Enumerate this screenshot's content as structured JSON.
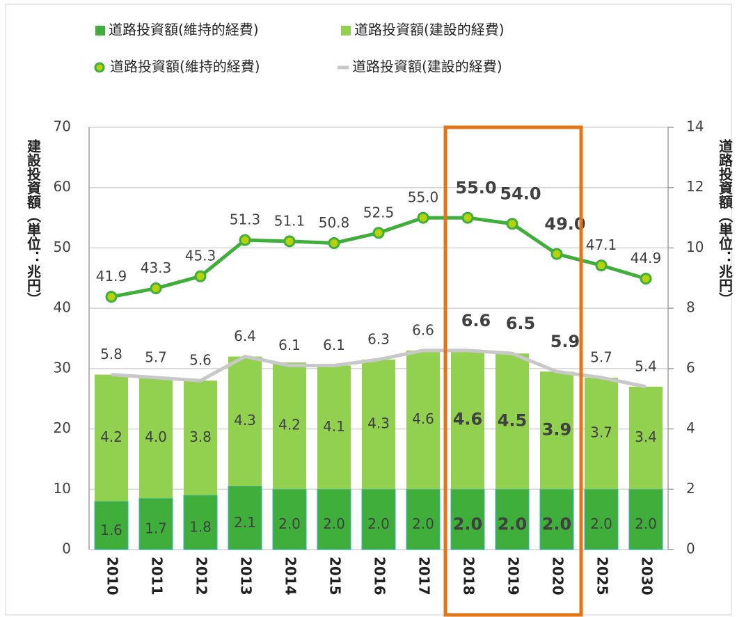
{
  "chart_data": {
    "type": "combo",
    "categories": [
      "2010",
      "2011",
      "2012",
      "2013",
      "2014",
      "2015",
      "2016",
      "2017",
      "2018",
      "2019",
      "2020",
      "2025",
      "2030"
    ],
    "ylabel": "建設投資額（単位：兆円）",
    "y2label": "道路投資額（単位：兆円）",
    "ylim": [
      0,
      70
    ],
    "yticks": [
      0,
      10,
      20,
      30,
      40,
      50,
      60,
      70
    ],
    "y2lim": [
      0,
      14
    ],
    "y2ticks": [
      0,
      2,
      4,
      6,
      8,
      10,
      12,
      14
    ],
    "grid": true,
    "series": [
      {
        "name": "道路投資額(維持的経費)",
        "type": "bar",
        "axis": "y2",
        "color": "#3fae3a",
        "values": [
          1.6,
          1.7,
          1.8,
          2.1,
          2.0,
          2.0,
          2.0,
          2.0,
          2.0,
          2.0,
          2.0,
          2.0,
          2.0
        ],
        "value_labels": [
          "1.6",
          "1.7",
          "1.8",
          "2.1",
          "2.0",
          "2.0",
          "2.0",
          "2.0",
          "2.0",
          "2.0",
          "2.0",
          "2.0",
          "2.0"
        ]
      },
      {
        "name": "道路投資額(建設的経費)",
        "type": "bar",
        "axis": "y2",
        "color": "#92d050",
        "values": [
          4.2,
          4.0,
          3.8,
          4.3,
          4.2,
          4.1,
          4.3,
          4.6,
          4.6,
          4.5,
          3.9,
          3.7,
          3.4
        ],
        "value_labels": [
          "4.2",
          "4.0",
          "3.8",
          "4.3",
          "4.2",
          "4.1",
          "4.3",
          "4.6",
          "4.6",
          "4.5",
          "3.9",
          "3.7",
          "3.4"
        ]
      },
      {
        "name": "道路投資額(維持的経費)",
        "type": "line",
        "axis": "y",
        "color": "#3fae3a",
        "marker_color": "#b5d20a",
        "values": [
          41.9,
          43.3,
          45.3,
          51.3,
          51.1,
          50.8,
          52.5,
          55.0,
          55.0,
          54.0,
          49.0,
          47.1,
          44.9
        ],
        "value_labels": [
          "41.9",
          "43.3",
          "45.3",
          "51.3",
          "51.1",
          "50.8",
          "52.5",
          "55.0",
          "55.0",
          "54.0",
          "49.0",
          "47.1",
          "44.9"
        ]
      },
      {
        "name": "道路投資額(建設的経費)",
        "type": "line",
        "axis": "y2",
        "color": "#c8c8c8",
        "values": [
          5.8,
          5.7,
          5.6,
          6.4,
          6.1,
          6.1,
          6.3,
          6.6,
          6.6,
          6.5,
          5.9,
          5.7,
          5.4
        ],
        "value_labels": [
          "5.8",
          "5.7",
          "5.6",
          "6.4",
          "6.1",
          "6.1",
          "6.3",
          "6.6",
          "6.6",
          "6.5",
          "5.9",
          "5.7",
          "5.4"
        ]
      }
    ]
  }
}
